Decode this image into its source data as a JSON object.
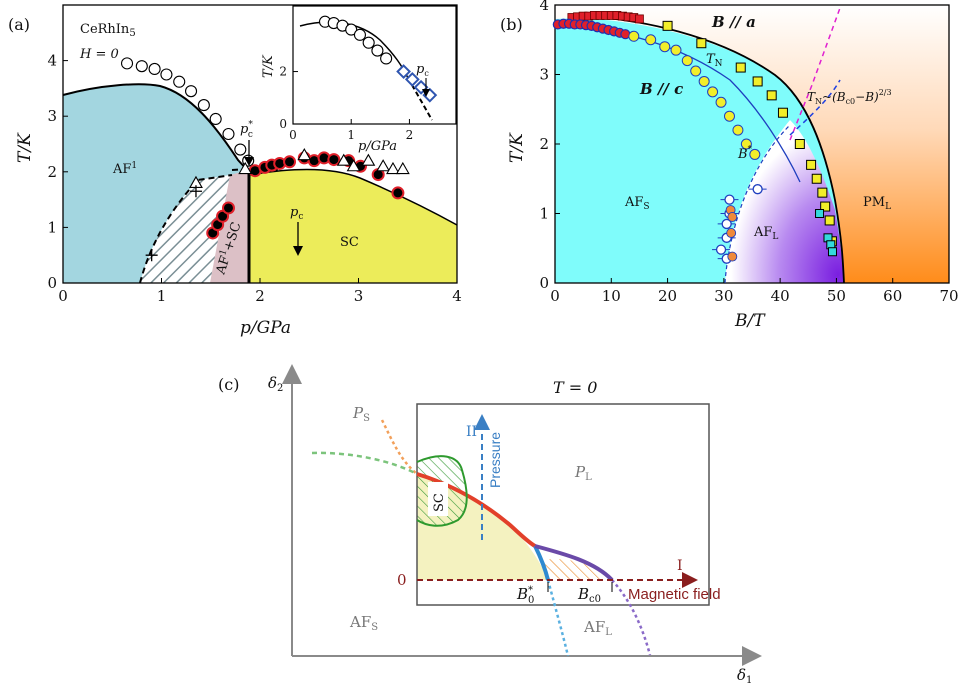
{
  "panels": {
    "a": {
      "panel_label": "(a)",
      "compound": "CeRhIn",
      "compound_sub": "5",
      "field_label": "H = 0",
      "phase_af": "AF",
      "phase_af_sup": "1",
      "phase_afsc": "AF",
      "phase_afsc_sup": "1",
      "phase_afsc_tail": "+SC",
      "phase_sc": "SC",
      "pc_label": "p",
      "pc_sub": "c",
      "pcstar_label": "p",
      "pcstar_sub": "c",
      "pcstar_sup": "*",
      "xlabel": "p/GPa",
      "ylabel": "T/K",
      "xticks": [
        "0",
        "1",
        "2",
        "3",
        "4"
      ],
      "yticks": [
        "0",
        "1",
        "2",
        "3",
        "4"
      ],
      "inset": {
        "xlabel": "p/GPa",
        "ylabel": "T/K",
        "xticks": [
          "0",
          "1",
          "2"
        ],
        "yticks": [
          "0",
          "2"
        ],
        "pc_label": "p",
        "pc_sub": "c"
      }
    },
    "b": {
      "panel_label": "(b)",
      "xlabel": "B/T",
      "ylabel": "T/K",
      "xticks": [
        "0",
        "10",
        "20",
        "30",
        "40",
        "50",
        "60",
        "70"
      ],
      "yticks": [
        "0",
        "1",
        "2",
        "3",
        "4"
      ],
      "label_ba": "B // a",
      "label_bc": "B // c",
      "label_tn": "T",
      "label_tn_sub": "N",
      "label_bstar": "B",
      "label_bstar_sup": "*",
      "label_afs": "AF",
      "label_afs_sub": "S",
      "label_afl": "AF",
      "label_afl_sub": "L",
      "label_pml": "PM",
      "label_pml_sub": "L",
      "scaling_label_pre": "T",
      "scaling_label_sub": "N",
      "scaling_label_post": "~(B",
      "scaling_label_sub2": "c0",
      "scaling_label_end": "−B)",
      "scaling_label_exp": "2/3"
    },
    "c": {
      "panel_label": "(c)",
      "title": "T = 0",
      "axis_x": "δ",
      "axis_x_sub": "1",
      "axis_y": "δ",
      "axis_y_sub": "2",
      "ps": "P",
      "ps_sub": "S",
      "pl": "P",
      "pl_sub": "L",
      "afs": "AF",
      "afs_sub": "S",
      "afl": "AF",
      "afl_sub": "L",
      "sc": "SC",
      "zero": "0",
      "roman_1": "I",
      "roman_2": "II",
      "pressure": "Pressure",
      "magnetic_field": "Magnetic field",
      "b0": "B",
      "b0_sub": "0",
      "b0_sup": "*",
      "bc0": "B",
      "bc0_sub": "c0"
    }
  },
  "colors": {
    "af_region": "#a3d6e0",
    "sc_region": "#ecec5a",
    "afs_region": "#7ffcfb",
    "afl_region": "#8a2be2",
    "pml_region": "#ff8c1a",
    "red_marker": "#e0202a",
    "yellow_marker": "#f2ee2a",
    "cyan_marker": "#34d9dc"
  },
  "chart_data": [
    {
      "type": "scatter",
      "panel": "a",
      "xlabel": "p/GPa",
      "ylabel": "T/K",
      "xlim": [
        0,
        4
      ],
      "ylim": [
        0,
        5
      ],
      "series": [
        {
          "marker": "open-circle",
          "x": [
            0.65,
            0.8,
            0.93,
            1.05,
            1.18,
            1.3,
            1.43,
            1.55,
            1.68,
            1.8,
            1.88
          ],
          "y": [
            3.95,
            3.9,
            3.85,
            3.75,
            3.62,
            3.45,
            3.2,
            2.95,
            2.68,
            2.4,
            2.2
          ]
        },
        {
          "marker": "filled-circle-red",
          "x": [
            1.52,
            1.57,
            1.62,
            1.68,
            1.95,
            2.05,
            2.12,
            2.2,
            2.3,
            2.45,
            2.55,
            2.65,
            2.75,
            2.9,
            3.02,
            3.2,
            3.4
          ],
          "y": [
            0.9,
            1.05,
            1.2,
            1.35,
            2.02,
            2.08,
            2.12,
            2.15,
            2.18,
            2.25,
            2.2,
            2.25,
            2.22,
            2.2,
            2.1,
            1.95,
            1.62
          ]
        },
        {
          "marker": "open-triangle",
          "x": [
            1.35,
            1.85,
            2.45,
            2.85,
            2.95,
            3.1,
            3.25,
            3.35,
            3.45
          ],
          "y": [
            1.8,
            2.05,
            2.3,
            2.2,
            2.1,
            2.2,
            2.1,
            2.05,
            2.05
          ]
        },
        {
          "marker": "plus",
          "x": [
            0.9,
            1.35
          ],
          "y": [
            0.5,
            1.65
          ]
        }
      ]
    },
    {
      "type": "scatter",
      "panel": "a-inset",
      "xlabel": "p/GPa",
      "ylabel": "T/K",
      "xlim": [
        0,
        2.8
      ],
      "ylim": [
        0,
        4.5
      ],
      "series": [
        {
          "marker": "open-circle",
          "x": [
            0.55,
            0.7,
            0.85,
            1.0,
            1.15,
            1.3,
            1.45,
            1.6
          ],
          "y": [
            3.9,
            3.85,
            3.75,
            3.6,
            3.4,
            3.1,
            2.8,
            2.5
          ]
        },
        {
          "marker": "open-diamond-blue",
          "x": [
            1.9,
            2.05,
            2.2,
            2.35
          ],
          "y": [
            2.0,
            1.7,
            1.4,
            1.1
          ]
        }
      ]
    },
    {
      "type": "scatter",
      "panel": "b",
      "xlabel": "B/T",
      "ylabel": "T/K",
      "xlim": [
        0,
        70
      ],
      "ylim": [
        0,
        4
      ],
      "series": [
        {
          "name": "B // a",
          "marker": "red-square",
          "x": [
            3,
            4,
            5,
            6,
            7,
            8,
            9,
            10,
            11,
            12,
            13,
            14,
            15
          ],
          "y": [
            3.82,
            3.83,
            3.84,
            3.84,
            3.85,
            3.85,
            3.85,
            3.85,
            3.85,
            3.84,
            3.83,
            3.82,
            3.8
          ]
        },
        {
          "name": "B // a",
          "marker": "yellow-square",
          "x": [
            20,
            26,
            33,
            36,
            38.5,
            40.5,
            43.5,
            45.5,
            46.5,
            47.5,
            48,
            48.8,
            49.2
          ],
          "y": [
            3.7,
            3.45,
            3.1,
            2.9,
            2.7,
            2.45,
            2.0,
            1.7,
            1.5,
            1.3,
            1.1,
            0.9,
            0.6
          ]
        },
        {
          "name": "B // c",
          "marker": "red-circle",
          "x": [
            0.5,
            1.5,
            2.5,
            3.5,
            4.5,
            5.5,
            6.5,
            7.5,
            8.5,
            9.5,
            10.5,
            11.5,
            12.5
          ],
          "y": [
            3.72,
            3.73,
            3.73,
            3.72,
            3.72,
            3.71,
            3.7,
            3.68,
            3.66,
            3.64,
            3.62,
            3.6,
            3.58
          ]
        },
        {
          "name": "B // c",
          "marker": "yellow-circle",
          "x": [
            14,
            17,
            19.5,
            21.5,
            23.5,
            25,
            26.5,
            28,
            29.5,
            31,
            32.5,
            34,
            35.5
          ],
          "y": [
            3.55,
            3.5,
            3.4,
            3.35,
            3.2,
            3.05,
            2.9,
            2.75,
            2.6,
            2.4,
            2.2,
            2.0,
            1.85
          ]
        },
        {
          "name": "B*",
          "marker": "open-circle-blue",
          "x": [
            31,
            36,
            31,
            30.5,
            30.5,
            29.5,
            30.5
          ],
          "y": [
            1.2,
            1.35,
            1.0,
            0.85,
            0.65,
            0.48,
            0.35
          ]
        },
        {
          "marker": "orange-circle",
          "x": [
            31.2,
            31.5,
            31.3,
            31.5
          ],
          "y": [
            1.05,
            0.95,
            0.72,
            0.38
          ]
        },
        {
          "marker": "cyan-square",
          "x": [
            47,
            48.5,
            49,
            49.3
          ],
          "y": [
            1.0,
            0.65,
            0.55,
            0.45
          ]
        }
      ]
    }
  ]
}
